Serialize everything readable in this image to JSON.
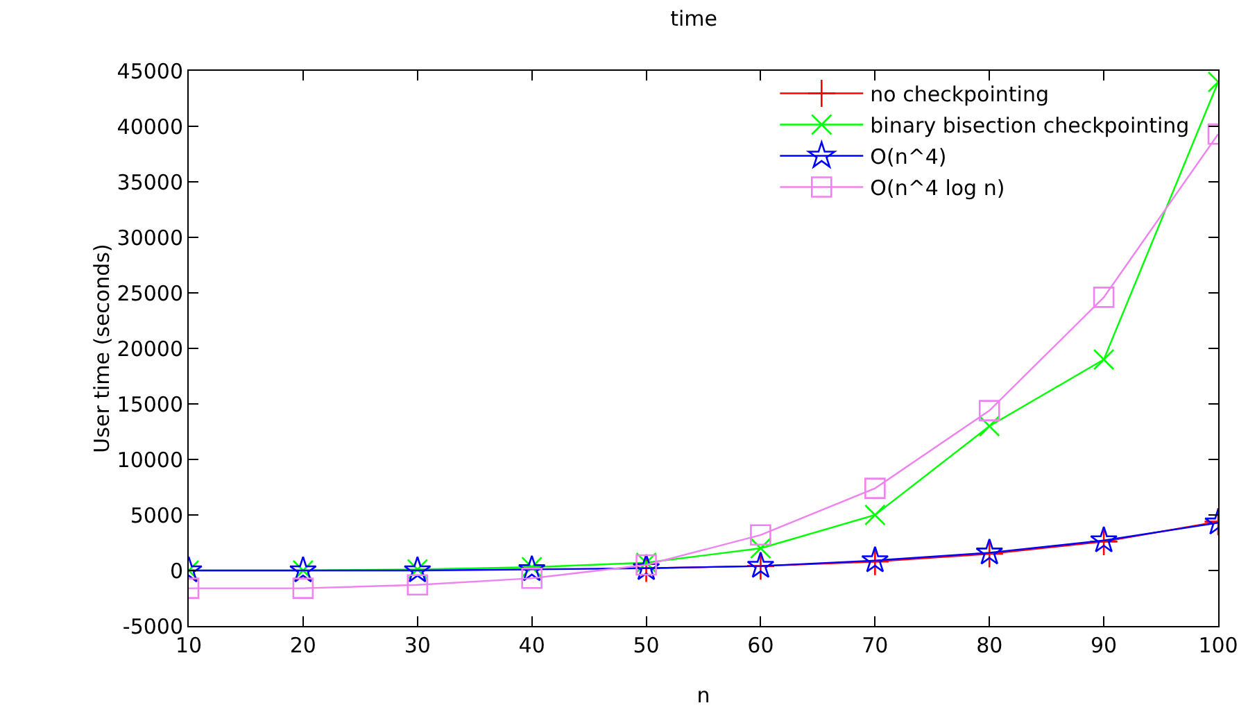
{
  "chart_data": {
    "type": "line",
    "title": "time",
    "xlabel": "n",
    "ylabel": "User time (seconds)",
    "x": [
      10,
      20,
      30,
      40,
      50,
      60,
      70,
      80,
      90,
      100
    ],
    "xlim": [
      10,
      100
    ],
    "xticks": [
      10,
      20,
      30,
      40,
      50,
      60,
      70,
      80,
      90,
      100
    ],
    "ylim": [
      -5000,
      45000
    ],
    "yticks": [
      -5000,
      0,
      5000,
      10000,
      15000,
      20000,
      25000,
      30000,
      35000,
      40000,
      45000
    ],
    "grid": false,
    "legend": "top right",
    "line_style": "solid",
    "series": [
      {
        "name": "no checkpointing",
        "color": "#ff0000",
        "marker": "cross",
        "values": [
          null,
          null,
          null,
          null,
          200,
          400,
          800,
          1500,
          2600,
          4400
        ]
      },
      {
        "name": "binary bisection checkpointing",
        "color": "#00ff00",
        "marker": "x",
        "values": [
          0,
          0,
          100,
          300,
          700,
          2000,
          5000,
          13000,
          19000,
          44000
        ]
      },
      {
        "name": "O(n^4)",
        "color": "#0000ff",
        "marker": "star",
        "values": [
          0,
          0,
          0,
          100,
          200,
          400,
          900,
          1600,
          2700,
          4300
        ]
      },
      {
        "name": "O(n^4 log n)",
        "color": "#ee82ee",
        "marker": "square",
        "values": [
          -1600,
          -1600,
          -1300,
          -700,
          500,
          3200,
          7400,
          14400,
          24600,
          39300
        ]
      }
    ]
  }
}
